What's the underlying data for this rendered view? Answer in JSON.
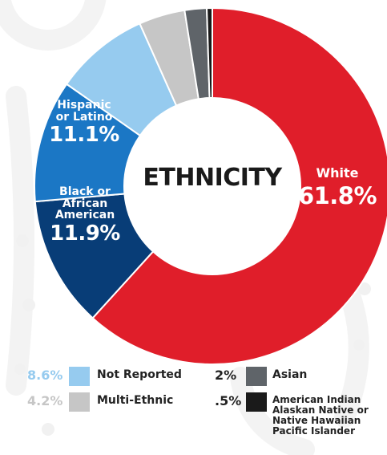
{
  "colors": {
    "white": "#e01e2a",
    "not_reported": "#96cbef",
    "multi_ethnic": "#c6c6c6",
    "asian": "#5f6469",
    "american_indian": "#1a1a1a",
    "black_african_american": "#083d77",
    "hispanic_latino": "#1b77c5",
    "background_decor": "#f2f2f2"
  },
  "chart_data": {
    "type": "pie",
    "title": "ETHNICITY",
    "donut": true,
    "slices": [
      {
        "key": "white",
        "label": "White",
        "display": "61.8%",
        "value": 61.8
      },
      {
        "key": "black_african_american",
        "label": "Black or African American",
        "display": "11.9%",
        "value": 11.9
      },
      {
        "key": "hispanic_latino",
        "label": "Hispanic or Latino",
        "display": "11.1%",
        "value": 11.1
      },
      {
        "key": "not_reported",
        "label": "Not Reported",
        "display": "8.6%",
        "value": 8.6
      },
      {
        "key": "multi_ethnic",
        "label": "Multi-Ethnic",
        "display": "4.2%",
        "value": 4.2
      },
      {
        "key": "asian",
        "label": "Asian",
        "display": "2%",
        "value": 2.0
      },
      {
        "key": "american_indian",
        "label": "American Indian Alaskan Native or Native Hawaiian Pacific Islander",
        "display": ".5%",
        "value": 0.5
      }
    ]
  },
  "segment_labels": {
    "white": {
      "cat": "White",
      "pct": "61.8%"
    },
    "hispanic": {
      "cat_line1": "Hispanic",
      "cat_line2": "or Latino",
      "pct": "11.1%"
    },
    "black": {
      "cat_line1": "Black or",
      "cat_line2": "African",
      "cat_line3": "American",
      "pct": "11.9%"
    }
  },
  "legend": {
    "not_reported": {
      "pct": "8.6%",
      "label": "Not Reported"
    },
    "multi_ethnic": {
      "pct": "4.2%",
      "label": "Multi-Ethnic"
    },
    "asian": {
      "pct": "2%",
      "label": "Asian"
    },
    "american_indian": {
      "pct": ".5%",
      "line1": "American Indian",
      "line2": "Alaskan Native or",
      "line3": "Native Hawaiian",
      "line4": "Pacific Islander"
    }
  }
}
